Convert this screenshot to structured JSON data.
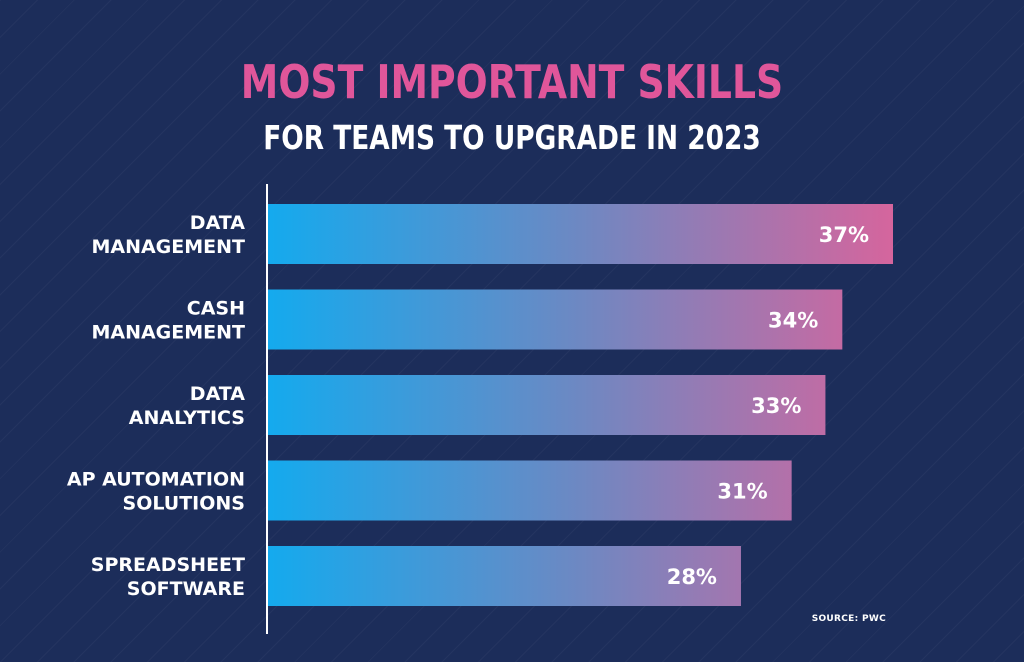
{
  "chart_data": {
    "type": "bar",
    "orientation": "horizontal",
    "title": "MOST IMPORTANT SKILLS",
    "subtitle": "FOR TEAMS TO UPGRADE IN 2023",
    "categories": [
      [
        "DATA",
        "MANAGEMENT"
      ],
      [
        "CASH",
        "MANAGEMENT"
      ],
      [
        "DATA",
        "ANALYTICS"
      ],
      [
        "AP AUTOMATION",
        "SOLUTIONS"
      ],
      [
        "SPREADSHEET",
        "SOFTWARE"
      ]
    ],
    "values": [
      37,
      34,
      33,
      31,
      28
    ],
    "value_labels": [
      "37%",
      "34%",
      "33%",
      "31%",
      "28%"
    ],
    "unit": "%",
    "xlim": [
      0,
      37
    ],
    "grid": false,
    "source": "SOURCE: PWC"
  },
  "colors": {
    "background": "#1c2d5a",
    "title": "#e0569a",
    "bar_start": "#14aaee",
    "bar_mid": "#6e88c2",
    "bar_end": "#d5659d",
    "axis": "#ffffff"
  }
}
